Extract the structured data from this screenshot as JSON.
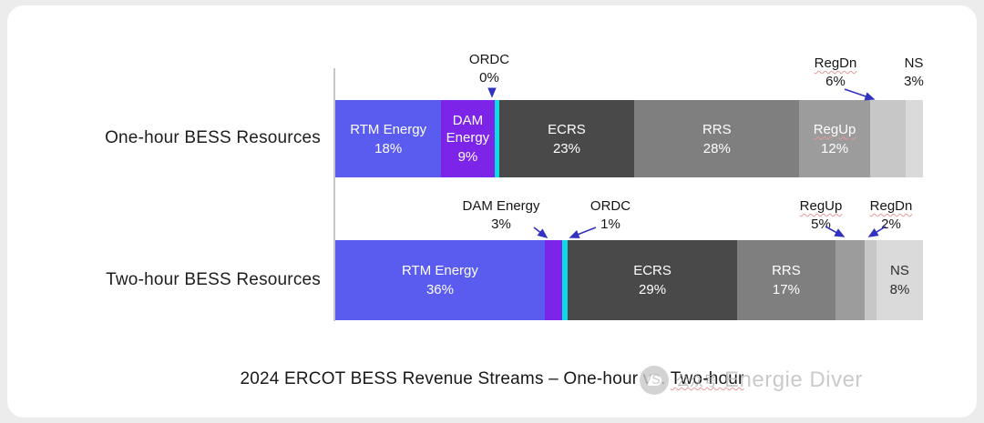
{
  "chart_data": {
    "type": "bar",
    "variant": "horizontal-stacked-100pct",
    "title": "2024 ERCOT BESS Revenue Streams – One-hour vs. Two-hour",
    "unit": "%",
    "categories": [
      "One-hour BESS Resources",
      "Two-hour BESS Resources"
    ],
    "series": [
      {
        "name": "RTM Energy",
        "color": "#5a5cf0",
        "values": [
          18,
          36
        ]
      },
      {
        "name": "DAM Energy",
        "color": "#7c25e8",
        "values": [
          9,
          3
        ]
      },
      {
        "name": "ORDC",
        "color": "#0bdce6",
        "values": [
          0,
          1
        ]
      },
      {
        "name": "ECRS",
        "color": "#494949",
        "values": [
          23,
          29
        ]
      },
      {
        "name": "RRS",
        "color": "#7f7f7f",
        "values": [
          28,
          17
        ]
      },
      {
        "name": "RegUp",
        "color": "#9c9c9c",
        "values": [
          12,
          5
        ]
      },
      {
        "name": "RegDn",
        "color": "#c7c7c7",
        "values": [
          6,
          2
        ]
      },
      {
        "name": "NS",
        "color": "#dadada",
        "values": [
          3,
          8
        ]
      }
    ],
    "legend_position": "none",
    "gridlines": false,
    "value_labels": "inside segments or annotated with arrows"
  },
  "rows": [
    {
      "label": "One-hour BESS Resources",
      "segments": [
        {
          "name": "RTM Energy",
          "value": 18,
          "value_text": "18%",
          "color": "#5a5cf0",
          "text_color": "#ffffff",
          "inside_label": true
        },
        {
          "name": "DAM Energy",
          "value": 9,
          "value_text": "9%",
          "color": "#7c25e8",
          "text_color": "#ffffff",
          "inside_label": true
        },
        {
          "name": "ORDC",
          "value": 0,
          "value_text": "0%",
          "color": "#0bdce6",
          "inside_label": false
        },
        {
          "name": "ECRS",
          "value": 23,
          "value_text": "23%",
          "color": "#494949",
          "text_color": "#ffffff",
          "inside_label": true
        },
        {
          "name": "RRS",
          "value": 28,
          "value_text": "28%",
          "color": "#7f7f7f",
          "text_color": "#ffffff",
          "inside_label": true
        },
        {
          "name": "RegUp",
          "value": 12,
          "value_text": "12%",
          "color": "#9c9c9c",
          "text_color": "#ffffff",
          "inside_label": true,
          "misspell_underline": true
        },
        {
          "name": "RegDn",
          "value": 6,
          "value_text": "6%",
          "color": "#c7c7c7",
          "inside_label": false
        },
        {
          "name": "NS",
          "value": 3,
          "value_text": "3%",
          "color": "#dadada",
          "inside_label": false
        }
      ]
    },
    {
      "label": "Two-hour BESS Resources",
      "segments": [
        {
          "name": "RTM Energy",
          "value": 36,
          "value_text": "36%",
          "color": "#5a5cf0",
          "text_color": "#ffffff",
          "inside_label": true
        },
        {
          "name": "DAM Energy",
          "value": 3,
          "value_text": "3%",
          "color": "#7c25e8",
          "inside_label": false
        },
        {
          "name": "ORDC",
          "value": 1,
          "value_text": "1%",
          "color": "#0bdce6",
          "inside_label": false
        },
        {
          "name": "ECRS",
          "value": 29,
          "value_text": "29%",
          "color": "#494949",
          "text_color": "#ffffff",
          "inside_label": true
        },
        {
          "name": "RRS",
          "value": 17,
          "value_text": "17%",
          "color": "#7f7f7f",
          "text_color": "#ffffff",
          "inside_label": true
        },
        {
          "name": "RegUp",
          "value": 5,
          "value_text": "5%",
          "color": "#9c9c9c",
          "inside_label": false
        },
        {
          "name": "RegDn",
          "value": 2,
          "value_text": "2%",
          "color": "#c7c7c7",
          "inside_label": false
        },
        {
          "name": "NS",
          "value": 8,
          "value_text": "8%",
          "color": "#dadada",
          "text_color": "#2e2e2e",
          "inside_label": true
        }
      ]
    }
  ],
  "annotations": {
    "ordc_one_hour": {
      "label": "ORDC",
      "value": "0%"
    },
    "regdn_one_hour": {
      "label": "RegDn",
      "value": "6%"
    },
    "ns_one_hour": {
      "label": "NS",
      "value": "3%"
    },
    "dam_two_hour": {
      "label": "DAM Energy",
      "value": "3%"
    },
    "ordc_two_hour": {
      "label": "ORDC",
      "value": "1%"
    },
    "regup_two_hour": {
      "label": "RegUp",
      "value": "5%"
    },
    "regdn_two_hour": {
      "label": "RegDn",
      "value": "2%"
    }
  },
  "title": {
    "runs": [
      {
        "text": "2024 ERCOT BESS Revenue Streams – One-hour vs. ",
        "misspell_underline": false
      },
      {
        "text": "Two-hour",
        "misspell_underline": true
      }
    ]
  },
  "colors": {
    "arrow": "#3232c0",
    "page_background": "#ececec",
    "card_background": "#ffffff"
  },
  "watermark": {
    "badge": "公众号",
    "name": "Energie Diver"
  }
}
